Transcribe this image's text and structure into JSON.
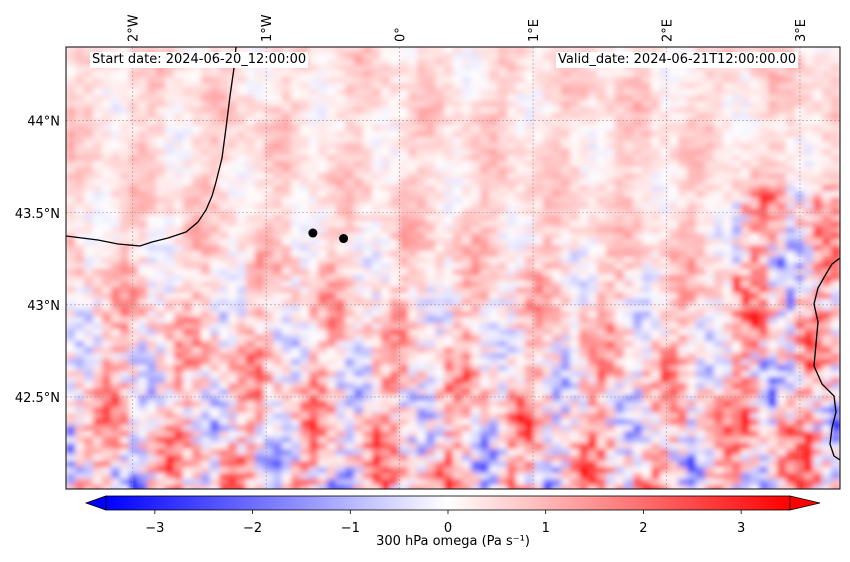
{
  "map": {
    "start_date": "Start date: 2024-06-20_12:00:00",
    "valid_date": "Valid_date: 2024-06-21T12:00:00.00",
    "lon_ticks": [
      "2°W",
      "1°W",
      "0°",
      "1°E",
      "2°E",
      "3°E"
    ],
    "lon_values": [
      -2,
      -1,
      0,
      1,
      2,
      3
    ],
    "lat_ticks": [
      "44°N",
      "43.5°N",
      "43°N",
      "42.5°N"
    ],
    "lat_values": [
      44,
      43.5,
      43,
      42.5
    ],
    "extent": {
      "lon_min": -2.5,
      "lon_max": 3.3,
      "lat_min": 42.0,
      "lat_max": 44.4
    },
    "points": [
      {
        "name": "point-a",
        "lon": -0.65,
        "lat": 43.39
      },
      {
        "name": "point-b",
        "lon": -0.42,
        "lat": 43.36
      }
    ]
  },
  "colorbar": {
    "label": "300 hPa omega (Pa s⁻¹)",
    "ticks": [
      "−3",
      "−2",
      "−1",
      "0",
      "1",
      "2",
      "3"
    ],
    "tick_values": [
      -3,
      -2,
      -1,
      0,
      1,
      2,
      3
    ],
    "vmin": -3.5,
    "vmax": 3.5,
    "colors": {
      "low": "#0000ff",
      "mid": "#ffffff",
      "high": "#ff0000"
    }
  }
}
